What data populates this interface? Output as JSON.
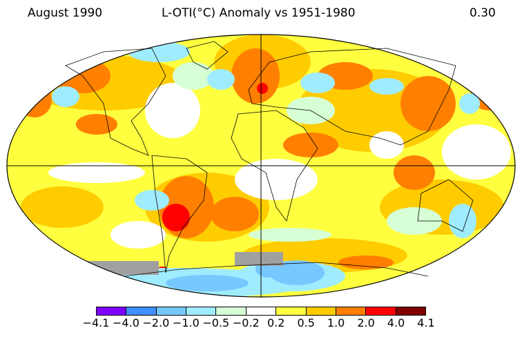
{
  "header": {
    "date": "August 1990",
    "title": "L-OTI(°C) Anomaly vs 1951-1980",
    "global_mean": "0.30"
  },
  "colorbar": {
    "ticks": [
      "−4.1",
      "−4.0",
      "−2.0",
      "−1.0",
      "−0.5",
      "−0.2",
      "0.2",
      "0.5",
      "1.0",
      "2.0",
      "4.0",
      "4.1"
    ],
    "colors": [
      "#8000ff",
      "#3f8fff",
      "#77c8ff",
      "#a0ecff",
      "#d6ffd6",
      "#ffffff",
      "#ffff40",
      "#ffcc00",
      "#ff7f00",
      "#ff0000",
      "#7f0000"
    ]
  },
  "map": {
    "projection": "Robinson",
    "missing_data_color": "#a0a0a0"
  }
}
